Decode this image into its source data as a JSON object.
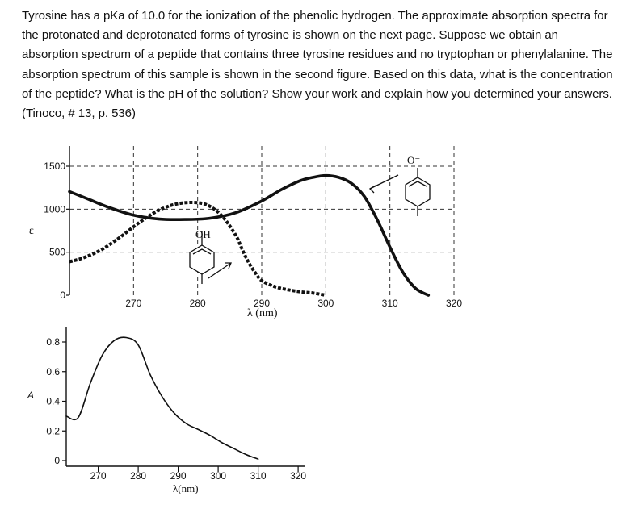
{
  "problem": {
    "text": "Tyrosine has a pKa of 10.0 for the ionization of the phenolic hydrogen. The approximate absorption spectra for the protonated and deprotonated forms of tyrosine is shown on the next page. Suppose we obtain an absorption spectrum of a peptide that contains three tyrosine residues and no tryptophan or phenylalanine. The absorption spectrum of this sample is shown in the second figure. Based on this data, what is the concentration of the peptide? What is the pH of the solution? Show your work and explain how you determined your answers. (Tinoco, # 13, p. 536)"
  },
  "colors": {
    "curve": "#111111",
    "grid": "#333333",
    "text": "#111111"
  },
  "chart_data": [
    {
      "type": "line",
      "ylabel": "ε",
      "xlabel": "λ (nm)",
      "xlim": [
        260,
        320
      ],
      "ylim": [
        0,
        1500
      ],
      "grid": true,
      "x_ticks": [
        "270",
        "280",
        "290",
        "300",
        "310",
        "320"
      ],
      "y_ticks": [
        "0",
        "500",
        "1000",
        "1500"
      ],
      "annotations": [
        "OH",
        "O⁻"
      ],
      "series": [
        {
          "style": "solid",
          "x": [
            260,
            263,
            266,
            270,
            274,
            278,
            282,
            286,
            290,
            293,
            296,
            298,
            300,
            302,
            304,
            306,
            308,
            310,
            312,
            314,
            316
          ],
          "y": [
            1205,
            1115,
            1025,
            930,
            885,
            880,
            895,
            960,
            1095,
            1225,
            1330,
            1370,
            1390,
            1370,
            1300,
            1150,
            880,
            560,
            270,
            80,
            0
          ]
        },
        {
          "style": "dashed",
          "x": [
            260,
            262,
            265,
            268,
            271,
            274,
            277,
            280,
            282,
            284,
            286,
            287,
            288,
            289,
            290,
            292,
            294,
            296,
            298,
            300
          ],
          "y": [
            390,
            430,
            530,
            680,
            850,
            990,
            1065,
            1075,
            1030,
            905,
            690,
            525,
            375,
            260,
            170,
            100,
            65,
            40,
            25,
            0
          ]
        }
      ]
    },
    {
      "type": "line",
      "ylabel": "A",
      "xlabel": "λ(nm)",
      "xlim": [
        262,
        322
      ],
      "ylim": [
        0,
        0.9
      ],
      "grid": false,
      "x_ticks": [
        "270",
        "280",
        "290",
        "300",
        "310",
        "320"
      ],
      "y_ticks": [
        "0",
        "0.2",
        "0.4",
        "0.6",
        "0.8"
      ],
      "series": [
        {
          "style": "solid",
          "x": [
            262,
            265,
            268,
            271,
            274,
            277,
            280,
            283,
            286,
            289,
            292,
            295,
            298,
            301,
            304,
            307,
            310
          ],
          "y": [
            0.3,
            0.29,
            0.52,
            0.71,
            0.81,
            0.83,
            0.78,
            0.58,
            0.43,
            0.32,
            0.25,
            0.21,
            0.17,
            0.12,
            0.08,
            0.04,
            0.01
          ]
        }
      ]
    }
  ]
}
